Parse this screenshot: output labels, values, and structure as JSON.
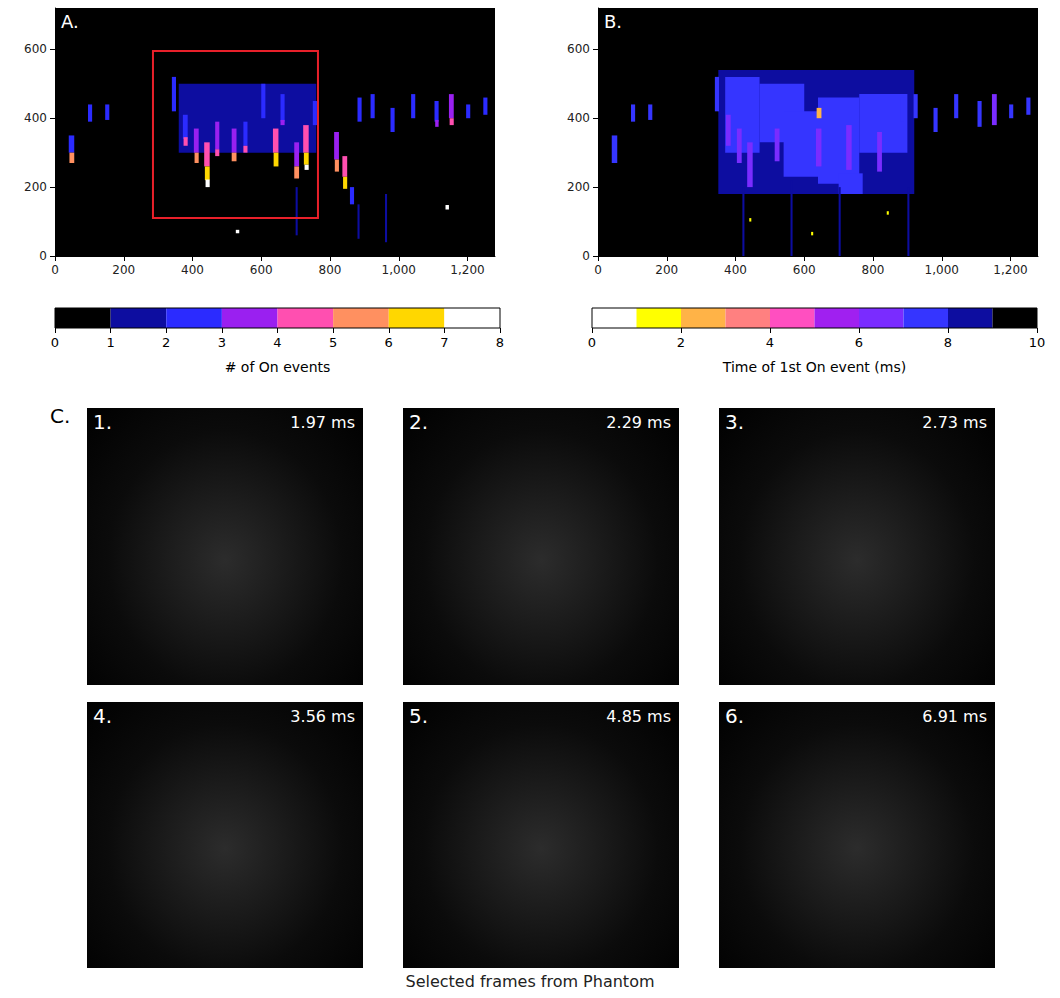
{
  "chart_data": [
    {
      "type": "heatmap",
      "panel": "A.",
      "xlim": [
        0,
        1280
      ],
      "xticks": [
        0,
        200,
        400,
        600,
        800,
        1000,
        1200
      ],
      "ylim": [
        0,
        720
      ],
      "yticks": [
        0,
        200,
        400,
        600
      ],
      "highlight_box": {
        "x": [
          285,
          765
        ],
        "y": [
          110,
          595
        ],
        "color": "#e8202a"
      },
      "cells": [
        {
          "x": [
            360,
            760
          ],
          "y": [
            300,
            500
          ],
          "value": 1
        },
        {
          "x": [
            40,
            56
          ],
          "y": [
            300,
            350
          ],
          "value": 2
        },
        {
          "x": [
            42,
            56
          ],
          "y": [
            270,
            300
          ],
          "value": 5
        },
        {
          "x": [
            96,
            108
          ],
          "y": [
            390,
            440
          ],
          "value": 2
        },
        {
          "x": [
            146,
            158
          ],
          "y": [
            395,
            440
          ],
          "value": 2
        },
        {
          "x": [
            340,
            352
          ],
          "y": [
            420,
            520
          ],
          "value": 2
        },
        {
          "x": [
            372,
            386
          ],
          "y": [
            340,
            410
          ],
          "value": 2
        },
        {
          "x": [
            374,
            386
          ],
          "y": [
            320,
            345
          ],
          "value": 4
        },
        {
          "x": [
            404,
            418
          ],
          "y": [
            300,
            370
          ],
          "value": 3
        },
        {
          "x": [
            406,
            418
          ],
          "y": [
            270,
            300
          ],
          "value": 5
        },
        {
          "x": [
            434,
            450
          ],
          "y": [
            260,
            330
          ],
          "value": 4
        },
        {
          "x": [
            436,
            450
          ],
          "y": [
            220,
            260
          ],
          "value": 6
        },
        {
          "x": [
            438,
            450
          ],
          "y": [
            200,
            222
          ],
          "value": 7
        },
        {
          "x": [
            466,
            478
          ],
          "y": [
            310,
            390
          ],
          "value": 3
        },
        {
          "x": [
            466,
            478
          ],
          "y": [
            290,
            310
          ],
          "value": 4
        },
        {
          "x": [
            514,
            528
          ],
          "y": [
            300,
            370
          ],
          "value": 3
        },
        {
          "x": [
            514,
            528
          ],
          "y": [
            275,
            300
          ],
          "value": 5
        },
        {
          "x": [
            548,
            560
          ],
          "y": [
            320,
            390
          ],
          "value": 2
        },
        {
          "x": [
            548,
            560
          ],
          "y": [
            300,
            320
          ],
          "value": 4
        },
        {
          "x": [
            600,
            612
          ],
          "y": [
            400,
            500
          ],
          "value": 2
        },
        {
          "x": [
            634,
            650
          ],
          "y": [
            300,
            370
          ],
          "value": 4
        },
        {
          "x": [
            636,
            650
          ],
          "y": [
            260,
            300
          ],
          "value": 6
        },
        {
          "x": [
            656,
            668
          ],
          "y": [
            390,
            470
          ],
          "value": 2
        },
        {
          "x": [
            656,
            668
          ],
          "y": [
            380,
            395
          ],
          "value": 3
        },
        {
          "x": [
            696,
            710
          ],
          "y": [
            260,
            330
          ],
          "value": 3
        },
        {
          "x": [
            696,
            710
          ],
          "y": [
            225,
            260
          ],
          "value": 5
        },
        {
          "x": [
            722,
            738
          ],
          "y": [
            300,
            380
          ],
          "value": 4
        },
        {
          "x": [
            724,
            738
          ],
          "y": [
            265,
            300
          ],
          "value": 6
        },
        {
          "x": [
            726,
            738
          ],
          "y": [
            250,
            265
          ],
          "value": 7
        },
        {
          "x": [
            750,
            762
          ],
          "y": [
            380,
            450
          ],
          "value": 2
        },
        {
          "x": [
            812,
            826
          ],
          "y": [
            280,
            360
          ],
          "value": 3
        },
        {
          "x": [
            814,
            826
          ],
          "y": [
            245,
            280
          ],
          "value": 5
        },
        {
          "x": [
            836,
            850
          ],
          "y": [
            230,
            290
          ],
          "value": 4
        },
        {
          "x": [
            838,
            850
          ],
          "y": [
            195,
            230
          ],
          "value": 6
        },
        {
          "x": [
            858,
            870
          ],
          "y": [
            150,
            200
          ],
          "value": 2
        },
        {
          "x": [
            880,
            892
          ],
          "y": [
            390,
            460
          ],
          "value": 2
        },
        {
          "x": [
            918,
            930
          ],
          "y": [
            400,
            470
          ],
          "value": 2
        },
        {
          "x": [
            976,
            988
          ],
          "y": [
            360,
            430
          ],
          "value": 2
        },
        {
          "x": [
            1036,
            1048
          ],
          "y": [
            400,
            470
          ],
          "value": 2
        },
        {
          "x": [
            1104,
            1116
          ],
          "y": [
            390,
            450
          ],
          "value": 2
        },
        {
          "x": [
            1106,
            1116
          ],
          "y": [
            375,
            395
          ],
          "value": 3
        },
        {
          "x": [
            1146,
            1160
          ],
          "y": [
            400,
            470
          ],
          "value": 3
        },
        {
          "x": [
            1148,
            1160
          ],
          "y": [
            380,
            400
          ],
          "value": 4
        },
        {
          "x": [
            1196,
            1208
          ],
          "y": [
            400,
            440
          ],
          "value": 2
        },
        {
          "x": [
            1246,
            1258
          ],
          "y": [
            410,
            460
          ],
          "value": 2
        },
        {
          "x": [
            700,
            706
          ],
          "y": [
            60,
            200
          ],
          "value": 1
        },
        {
          "x": [
            880,
            886
          ],
          "y": [
            50,
            150
          ],
          "value": 1
        },
        {
          "x": [
            960,
            966
          ],
          "y": [
            40,
            180
          ],
          "value": 1
        },
        {
          "x": [
            1136,
            1146
          ],
          "y": [
            135,
            148
          ],
          "value": 7
        },
        {
          "x": [
            526,
            536
          ],
          "y": [
            66,
            76
          ],
          "value": 7
        }
      ],
      "colorbar": {
        "label": "# of On events",
        "range": [
          0,
          8
        ],
        "ticks": [
          0,
          1,
          2,
          3,
          4,
          5,
          6,
          7,
          8
        ],
        "bins": [
          0,
          1,
          2,
          3,
          4,
          5,
          6,
          7,
          8
        ],
        "colors": [
          "#000000",
          "#0d0da0",
          "#2b2bff",
          "#9a20f0",
          "#ff4fb0",
          "#ff9060",
          "#ffd700",
          "#ffffff"
        ]
      }
    },
    {
      "type": "heatmap",
      "panel": "B.",
      "xlim": [
        0,
        1280
      ],
      "xticks": [
        0,
        200,
        400,
        600,
        800,
        1000,
        1200
      ],
      "ylim": [
        0,
        720
      ],
      "yticks": [
        0,
        200,
        400,
        600
      ],
      "cells": [
        {
          "x": [
            350,
            920
          ],
          "y": [
            180,
            540
          ],
          "value": 8.5
        },
        {
          "x": [
            370,
            470
          ],
          "y": [
            300,
            520
          ],
          "value": 7.5
        },
        {
          "x": [
            470,
            600
          ],
          "y": [
            330,
            500
          ],
          "value": 7.5
        },
        {
          "x": [
            540,
            640
          ],
          "y": [
            230,
            420
          ],
          "value": 7.5
        },
        {
          "x": [
            640,
            760
          ],
          "y": [
            210,
            460
          ],
          "value": 7.5
        },
        {
          "x": [
            760,
            900
          ],
          "y": [
            300,
            470
          ],
          "value": 7.5
        },
        {
          "x": [
            700,
            770
          ],
          "y": [
            180,
            240
          ],
          "value": 7.5
        },
        {
          "x": [
            420,
            426
          ],
          "y": [
            0,
            200
          ],
          "value": 8.5
        },
        {
          "x": [
            560,
            566
          ],
          "y": [
            0,
            220
          ],
          "value": 8.5
        },
        {
          "x": [
            700,
            706
          ],
          "y": [
            0,
            200
          ],
          "value": 8.5
        },
        {
          "x": [
            900,
            906
          ],
          "y": [
            0,
            200
          ],
          "value": 8.5
        },
        {
          "x": [
            40,
            56
          ],
          "y": [
            270,
            350
          ],
          "value": 7.5
        },
        {
          "x": [
            96,
            108
          ],
          "y": [
            390,
            440
          ],
          "value": 7.5
        },
        {
          "x": [
            146,
            158
          ],
          "y": [
            395,
            440
          ],
          "value": 7.5
        },
        {
          "x": [
            340,
            352
          ],
          "y": [
            420,
            520
          ],
          "value": 7.5
        },
        {
          "x": [
            372,
            386
          ],
          "y": [
            320,
            410
          ],
          "value": 6.5
        },
        {
          "x": [
            404,
            418
          ],
          "y": [
            270,
            370
          ],
          "value": 6.5
        },
        {
          "x": [
            434,
            450
          ],
          "y": [
            200,
            330
          ],
          "value": 6.5
        },
        {
          "x": [
            514,
            528
          ],
          "y": [
            275,
            370
          ],
          "value": 6.5
        },
        {
          "x": [
            634,
            650
          ],
          "y": [
            260,
            370
          ],
          "value": 6.5
        },
        {
          "x": [
            722,
            738
          ],
          "y": [
            250,
            380
          ],
          "value": 6.5
        },
        {
          "x": [
            812,
            826
          ],
          "y": [
            245,
            360
          ],
          "value": 6.5
        },
        {
          "x": [
            880,
            892
          ],
          "y": [
            390,
            460
          ],
          "value": 7.5
        },
        {
          "x": [
            918,
            930
          ],
          "y": [
            400,
            470
          ],
          "value": 7.5
        },
        {
          "x": [
            976,
            988
          ],
          "y": [
            360,
            430
          ],
          "value": 7.5
        },
        {
          "x": [
            1036,
            1048
          ],
          "y": [
            400,
            470
          ],
          "value": 7.5
        },
        {
          "x": [
            1104,
            1116
          ],
          "y": [
            375,
            450
          ],
          "value": 7.5
        },
        {
          "x": [
            1146,
            1160
          ],
          "y": [
            380,
            470
          ],
          "value": 6.5
        },
        {
          "x": [
            1196,
            1208
          ],
          "y": [
            400,
            440
          ],
          "value": 7.5
        },
        {
          "x": [
            1246,
            1258
          ],
          "y": [
            410,
            460
          ],
          "value": 7.5
        },
        {
          "x": [
            636,
            650
          ],
          "y": [
            400,
            430
          ],
          "value": 2.5
        },
        {
          "x": [
            440,
            446
          ],
          "y": [
            100,
            110
          ],
          "value": 1.5
        },
        {
          "x": [
            620,
            626
          ],
          "y": [
            60,
            70
          ],
          "value": 1.5
        },
        {
          "x": [
            840,
            846
          ],
          "y": [
            120,
            130
          ],
          "value": 1.5
        }
      ],
      "colorbar": {
        "label": "Time of 1st On event (ms)",
        "range": [
          0,
          10
        ],
        "ticks": [
          0,
          2,
          4,
          6,
          8,
          10
        ],
        "bins": [
          0,
          1,
          2,
          3,
          4,
          5,
          6,
          7,
          8,
          9,
          10
        ],
        "colors": [
          "#ffffff",
          "#ffff00",
          "#ffb347",
          "#ff8080",
          "#ff4fc0",
          "#a020f0",
          "#7a2cff",
          "#3535ff",
          "#0d0da0",
          "#000000"
        ]
      }
    }
  ],
  "figure": {
    "panel_c": {
      "label": "C.",
      "caption": "Selected frames from Phantom",
      "frames": [
        {
          "label": "1.",
          "time": "1.97 ms"
        },
        {
          "label": "2.",
          "time": "2.29 ms"
        },
        {
          "label": "3.",
          "time": "2.73 ms"
        },
        {
          "label": "4.",
          "time": "3.56 ms"
        },
        {
          "label": "5.",
          "time": "4.85 ms"
        },
        {
          "label": "6.",
          "time": "6.91 ms"
        }
      ]
    }
  }
}
